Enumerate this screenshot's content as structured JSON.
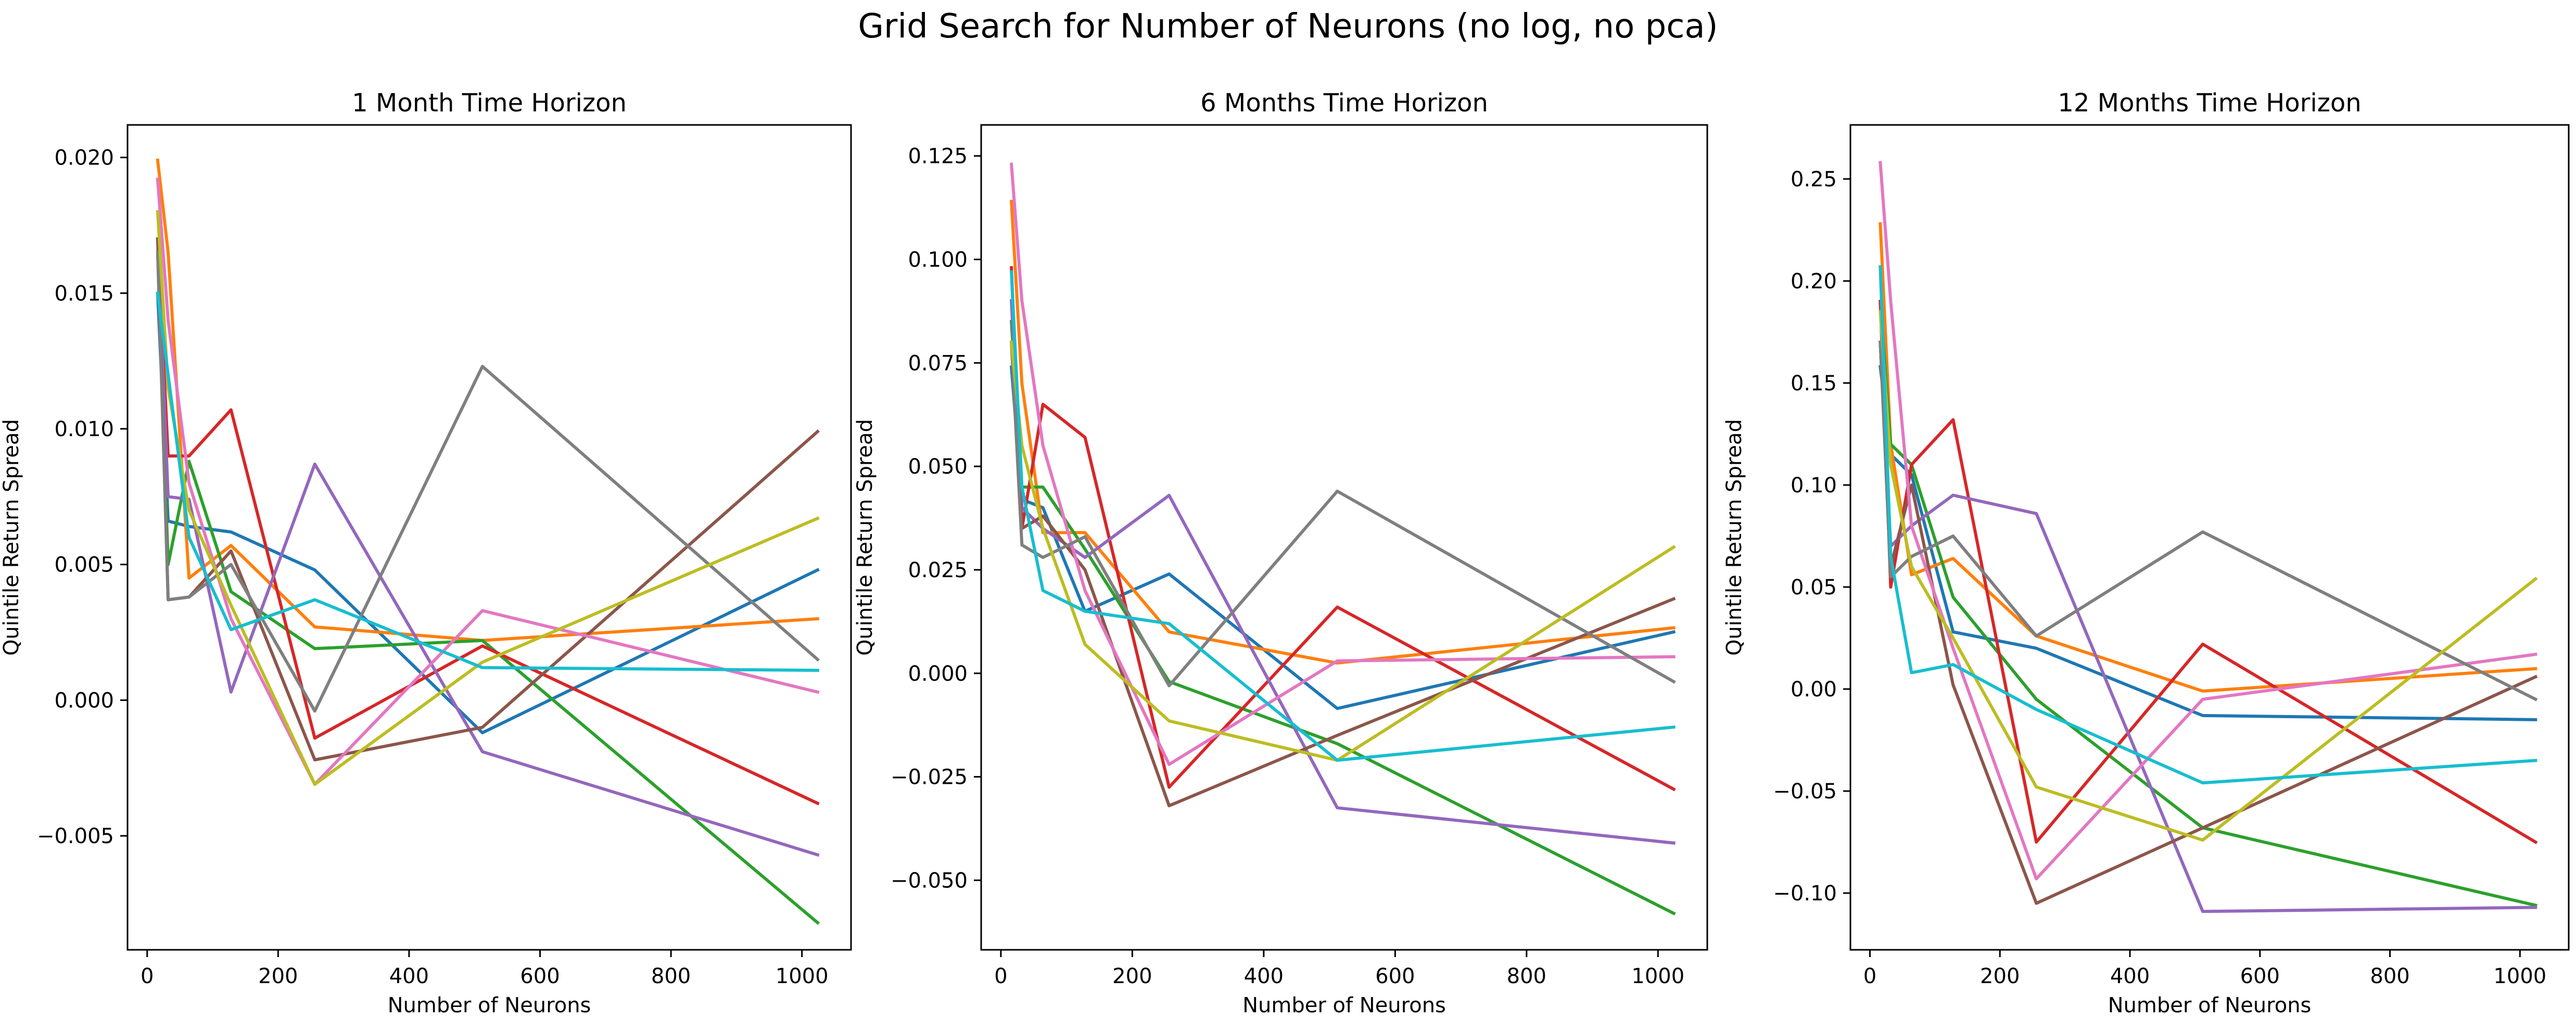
{
  "title": "Grid Search for Number of Neurons (no log, no pca)",
  "colors": [
    "#1f77b4",
    "#ff7f0e",
    "#2ca02c",
    "#d62728",
    "#9467bd",
    "#8c564b",
    "#e377c2",
    "#7f7f7f",
    "#bcbd22",
    "#17becf"
  ],
  "chart_data": [
    {
      "type": "line",
      "title": "1 Month Time Horizon",
      "xlabel": "Number of Neurons",
      "ylabel": "Quintile Return Spread",
      "grid": false,
      "xlim": [
        -30,
        1075
      ],
      "ylim": [
        -0.0092,
        0.0212
      ],
      "xticks": [
        0,
        200,
        400,
        600,
        800,
        1000
      ],
      "xticklabels": [
        "0",
        "200",
        "400",
        "600",
        "800",
        "1000"
      ],
      "yticks": [
        -0.005,
        0,
        0.005,
        0.01,
        0.015,
        0.02
      ],
      "yticklabels": [
        "−0.005",
        "0.000",
        "0.005",
        "0.010",
        "0.015",
        "0.020"
      ],
      "x": [
        16,
        32,
        64,
        128,
        256,
        512,
        1024
      ],
      "series": [
        {
          "values": [
            0.015,
            0.0066,
            0.0064,
            0.0062,
            0.0048,
            -0.0012,
            0.0048
          ]
        },
        {
          "values": [
            0.0199,
            0.0165,
            0.0045,
            0.0057,
            0.0027,
            0.0022,
            0.003
          ]
        },
        {
          "values": [
            0.0165,
            0.005,
            0.0088,
            0.004,
            0.0019,
            0.0022,
            -0.0082
          ]
        },
        {
          "values": [
            0.017,
            0.009,
            0.009,
            0.0107,
            -0.0014,
            0.002,
            -0.0038
          ]
        },
        {
          "values": [
            0.017,
            0.0075,
            0.0074,
            0.0003,
            0.0087,
            -0.0019,
            -0.0057
          ]
        },
        {
          "values": [
            0.017,
            0.0037,
            0.0038,
            0.0055,
            -0.0022,
            -0.001,
            0.0099
          ]
        },
        {
          "values": [
            0.0192,
            0.014,
            0.008,
            0.003,
            -0.0031,
            0.0033,
            0.0003
          ]
        },
        {
          "values": [
            0.0165,
            0.0037,
            0.0038,
            0.005,
            -0.0004,
            0.0123,
            0.0015
          ]
        },
        {
          "values": [
            0.018,
            0.0115,
            0.007,
            0.0035,
            -0.0031,
            0.0014,
            0.0067
          ]
        },
        {
          "values": [
            0.015,
            0.012,
            0.006,
            0.0026,
            0.0037,
            0.0012,
            0.0011
          ]
        }
      ]
    },
    {
      "type": "line",
      "title": "6 Months Time Horizon",
      "xlabel": "Number of Neurons",
      "ylabel": "Quintile Return Spread",
      "grid": false,
      "xlim": [
        -30,
        1075
      ],
      "ylim": [
        -0.0668,
        0.1325
      ],
      "xticks": [
        0,
        200,
        400,
        600,
        800,
        1000
      ],
      "xticklabels": [
        "0",
        "200",
        "400",
        "600",
        "800",
        "1000"
      ],
      "yticks": [
        -0.05,
        -0.025,
        0,
        0.025,
        0.05,
        0.075,
        0.1,
        0.125
      ],
      "yticklabels": [
        "−0.050",
        "−0.025",
        "0.000",
        "0.025",
        "0.050",
        "0.075",
        "0.100",
        "0.125"
      ],
      "x": [
        16,
        32,
        64,
        128,
        256,
        512,
        1024
      ],
      "series": [
        {
          "values": [
            0.074,
            0.042,
            0.04,
            0.015,
            0.024,
            -0.0085,
            0.01
          ]
        },
        {
          "values": [
            0.114,
            0.07,
            0.034,
            0.034,
            0.01,
            0.0025,
            0.011
          ]
        },
        {
          "values": [
            0.085,
            0.045,
            0.045,
            0.03,
            -0.002,
            -0.017,
            -0.058
          ]
        },
        {
          "values": [
            0.098,
            0.035,
            0.065,
            0.057,
            -0.0275,
            0.016,
            -0.028
          ]
        },
        {
          "values": [
            0.09,
            0.04,
            0.035,
            0.028,
            0.043,
            -0.0325,
            -0.041
          ]
        },
        {
          "values": [
            0.08,
            0.035,
            0.038,
            0.025,
            -0.032,
            -0.015,
            0.018
          ]
        },
        {
          "values": [
            0.123,
            0.09,
            0.055,
            0.02,
            -0.022,
            0.003,
            0.004
          ]
        },
        {
          "values": [
            0.08,
            0.031,
            0.028,
            0.033,
            -0.003,
            0.044,
            -0.002
          ]
        },
        {
          "values": [
            0.08,
            0.055,
            0.035,
            0.007,
            -0.0115,
            -0.021,
            0.0305
          ]
        },
        {
          "values": [
            0.097,
            0.045,
            0.02,
            0.015,
            0.012,
            -0.021,
            -0.013
          ]
        }
      ]
    },
    {
      "type": "line",
      "title": "12 Months Time Horizon",
      "xlabel": "Number of Neurons",
      "ylabel": "Quintile Return Spread",
      "grid": false,
      "xlim": [
        -30,
        1075
      ],
      "ylim": [
        -0.1278,
        0.2765
      ],
      "xticks": [
        0,
        200,
        400,
        600,
        800,
        1000
      ],
      "xticklabels": [
        "0",
        "200",
        "400",
        "600",
        "800",
        "1000"
      ],
      "yticks": [
        -0.1,
        -0.05,
        0,
        0.05,
        0.1,
        0.15,
        0.2,
        0.25
      ],
      "yticklabels": [
        "−0.10",
        "−0.05",
        "0.00",
        "0.05",
        "0.10",
        "0.15",
        "0.20",
        "0.25"
      ],
      "x": [
        16,
        32,
        64,
        128,
        256,
        512,
        1024
      ],
      "series": [
        {
          "values": [
            0.158,
            0.115,
            0.105,
            0.028,
            0.02,
            -0.013,
            -0.015
          ]
        },
        {
          "values": [
            0.228,
            0.12,
            0.056,
            0.064,
            0.026,
            -0.001,
            0.01
          ]
        },
        {
          "values": [
            0.19,
            0.12,
            0.11,
            0.045,
            -0.005,
            -0.068,
            -0.106
          ]
        },
        {
          "values": [
            0.19,
            0.05,
            0.11,
            0.132,
            -0.075,
            0.022,
            -0.075
          ]
        },
        {
          "values": [
            0.17,
            0.07,
            0.08,
            0.095,
            0.086,
            -0.109,
            -0.107
          ]
        },
        {
          "values": [
            0.17,
            0.06,
            0.1,
            0.002,
            -0.105,
            -0.068,
            0.006
          ]
        },
        {
          "values": [
            0.258,
            0.19,
            0.08,
            0.02,
            -0.093,
            -0.005,
            0.017
          ]
        },
        {
          "values": [
            0.17,
            0.055,
            0.065,
            0.075,
            0.026,
            0.077,
            -0.005
          ]
        },
        {
          "values": [
            0.185,
            0.11,
            0.06,
            0.025,
            -0.048,
            -0.074,
            0.054
          ]
        },
        {
          "values": [
            0.207,
            0.065,
            0.008,
            0.012,
            -0.01,
            -0.046,
            -0.035
          ]
        }
      ]
    }
  ]
}
